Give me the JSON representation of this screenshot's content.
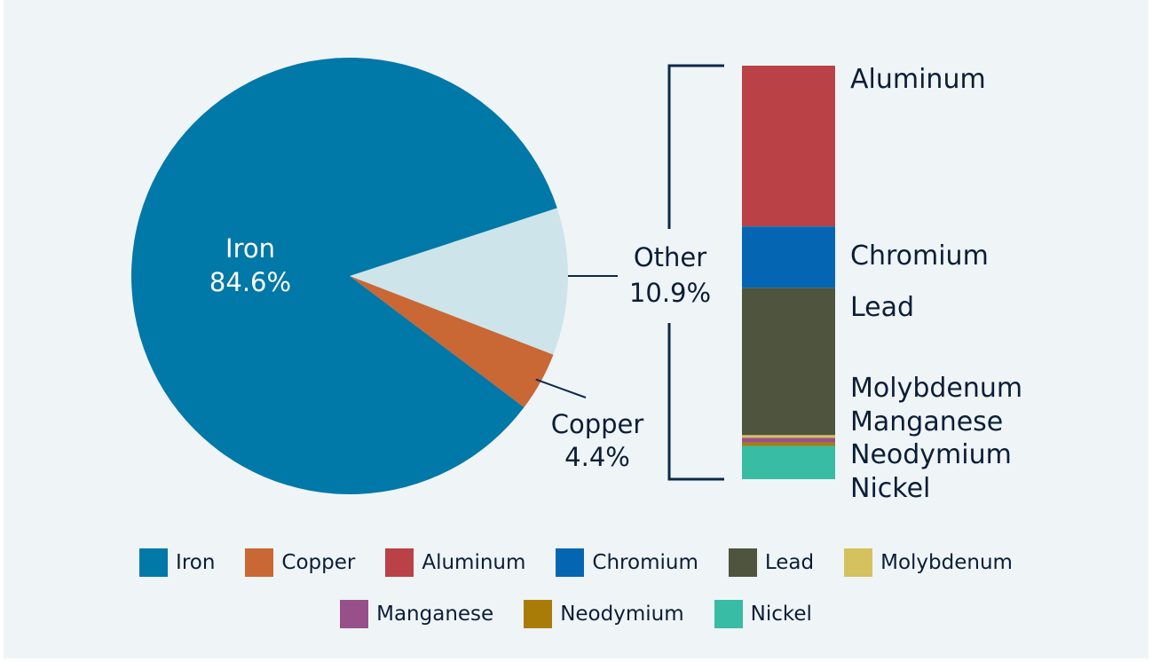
{
  "chart_data": {
    "type": "pie",
    "slices": [
      {
        "name": "Iron",
        "value": 84.6,
        "label": "84.6%",
        "color": "#0078a8"
      },
      {
        "name": "Other",
        "value": 10.9,
        "label": "10.9%",
        "color": "#cde5ea"
      },
      {
        "name": "Copper",
        "value": 4.4,
        "label": "4.4%",
        "color": "#c96735"
      }
    ],
    "breakdown": {
      "of": "Other",
      "type": "stacked-bar",
      "segments": [
        {
          "name": "Aluminum",
          "value": 4.2,
          "color": "#ba4145"
        },
        {
          "name": "Chromium",
          "value": 1.6,
          "color": "#0466b3"
        },
        {
          "name": "Lead",
          "value": 3.85,
          "color": "#4e543e"
        },
        {
          "name": "Molybdenum",
          "value": 0.07,
          "color": "#d5c15e"
        },
        {
          "name": "Manganese",
          "value": 0.12,
          "color": "#98508a"
        },
        {
          "name": "Neodymium",
          "value": 0.09,
          "color": "#a97c08"
        },
        {
          "name": "Nickel",
          "value": 0.87,
          "color": "#38bca4"
        }
      ]
    },
    "legend": {
      "placement": "bottom",
      "rows": [
        [
          {
            "name": "Iron",
            "color": "#0078a8"
          },
          {
            "name": "Copper",
            "color": "#c96735"
          },
          {
            "name": "Aluminum",
            "color": "#ba4145"
          },
          {
            "name": "Chromium",
            "color": "#0466b3"
          },
          {
            "name": "Lead",
            "color": "#4e543e"
          },
          {
            "name": "Molybdenum",
            "color": "#d5c15e"
          }
        ],
        [
          {
            "name": "Manganese",
            "color": "#98508a"
          },
          {
            "name": "Neodymium",
            "color": "#a97c08"
          },
          {
            "name": "Nickel",
            "color": "#38bca4"
          }
        ]
      ]
    },
    "connector_color": "#0b2a4a"
  }
}
